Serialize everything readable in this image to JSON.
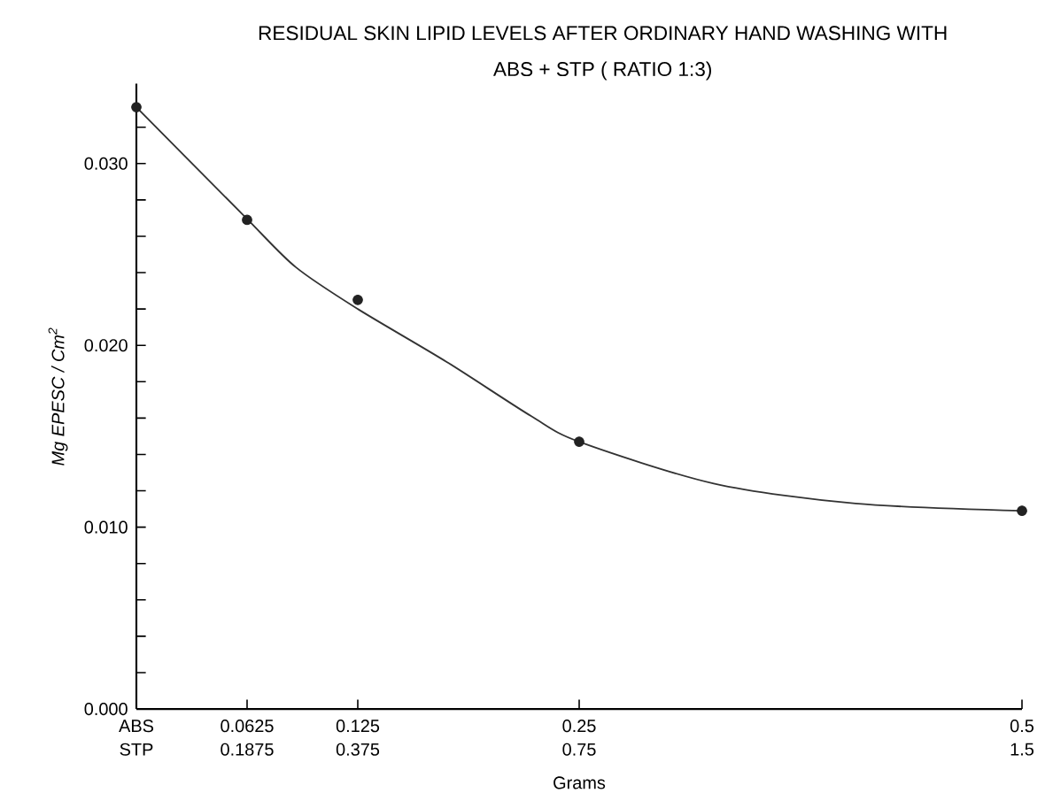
{
  "chart_data": {
    "type": "scatter",
    "title": "RESIDUAL SKIN LIPID LEVELS AFTER ORDINARY HAND WASHING WITH",
    "subtitle": "ABS + STP ( RATIO 1:3)",
    "xlabel": "Grams",
    "ylabel": "Mg EPESC / Cm$^{2}$",
    "xlim": [
      0,
      0.5
    ],
    "xticks": [
      {
        "value": 0,
        "label": "ABS"
      },
      0.0625,
      0.125,
      0.25,
      0.5
    ],
    "x2lim": [
      0,
      1.5
    ],
    "x2ticks": [
      {
        "value": 0,
        "label": "STP"
      },
      0.1875,
      0.375,
      0.75,
      1.5
    ],
    "ylim": [
      0,
      0.0344
    ],
    "yticks": [
      "0.000",
      {
        "value": 0.002,
        "label": null
      },
      {
        "value": 0.004,
        "label": null
      },
      {
        "value": 0.006,
        "label": null
      },
      {
        "value": 0.008,
        "label": null
      },
      {
        "value": 0.01,
        "label": "0.010"
      },
      {
        "value": 0.012,
        "label": null
      },
      {
        "value": 0.014,
        "label": null
      },
      {
        "value": 0.016,
        "label": null
      },
      {
        "value": 0.018,
        "label": null
      },
      {
        "value": 0.02,
        "label": "0.020"
      },
      {
        "value": 0.022,
        "label": null
      },
      {
        "value": 0.024,
        "label": null
      },
      {
        "value": 0.026,
        "label": null
      },
      {
        "value": 0.028,
        "label": null
      },
      {
        "value": 0.03,
        "label": "0.030"
      },
      {
        "value": 0.032,
        "label": null
      }
    ],
    "series": [
      {
        "color": "#222222",
        "marker": "circle",
        "x": [
          0,
          0.0625,
          0.125,
          0.25,
          0.5
        ],
        "values": [
          0.0331,
          0.0269,
          0.0225,
          0.0147,
          0.0109
        ]
      },
      {
        "type": "line",
        "color": "#333333",
        "marker": "none",
        "line_style": "solid",
        "x": [
          0,
          0.062,
          0.09,
          0.125,
          0.175,
          0.223,
          0.25,
          0.326,
          0.406,
          0.5
        ],
        "values": [
          0.0331,
          0.027,
          0.0243,
          0.022,
          0.0191,
          0.0161,
          0.0147,
          0.0124,
          0.0113,
          0.0109
        ]
      }
    ]
  }
}
